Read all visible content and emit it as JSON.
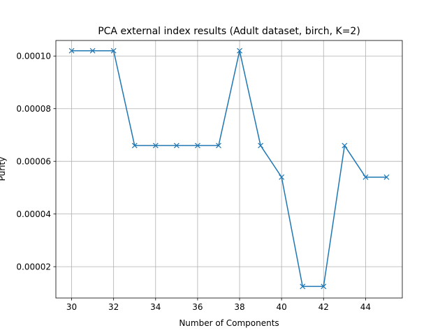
{
  "chart_data": {
    "type": "line",
    "title": "PCA external index results (Adult dataset, birch, K=2)",
    "xlabel": "Number of Components",
    "ylabel": "Purity",
    "x": [
      30,
      31,
      32,
      33,
      34,
      35,
      36,
      37,
      38,
      39,
      40,
      41,
      42,
      43,
      44,
      45
    ],
    "series": [
      {
        "values": [
          0.000102,
          0.000102,
          0.000102,
          6.6e-05,
          6.6e-05,
          6.6e-05,
          6.6e-05,
          6.6e-05,
          0.000102,
          6.6e-05,
          5.4e-05,
          1.25e-05,
          1.25e-05,
          6.6e-05,
          5.4e-05,
          5.4e-05
        ],
        "color": "#1f77b4",
        "marker": "x"
      }
    ],
    "xlim": [
      29.25,
      45.75
    ],
    "ylim": [
      8.1e-06,
      0.0001059
    ],
    "xticks": [
      30,
      32,
      34,
      36,
      38,
      40,
      42,
      44
    ],
    "xtick_labels": [
      "30",
      "32",
      "34",
      "36",
      "38",
      "40",
      "42",
      "44"
    ],
    "yticks": [
      2e-05,
      4e-05,
      6e-05,
      8e-05,
      0.0001
    ],
    "ytick_labels": [
      "0.00002",
      "0.00004",
      "0.00006",
      "0.00008",
      "0.00010"
    ],
    "grid": true
  }
}
